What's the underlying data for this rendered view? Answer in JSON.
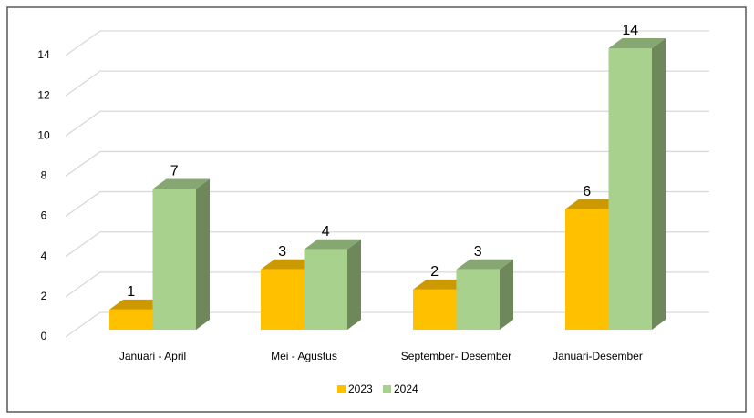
{
  "chart_data": {
    "type": "bar",
    "categories": [
      "Januari - April",
      "Mei - Agustus",
      "September- Desember",
      "Januari-Desember"
    ],
    "series": [
      {
        "name": "2023",
        "color": "#FFC000",
        "values": [
          1,
          3,
          2,
          6
        ]
      },
      {
        "name": "2024",
        "color": "#A9D18E",
        "values": [
          7,
          4,
          3,
          14
        ]
      }
    ],
    "ylim": [
      0,
      14
    ],
    "yticks": [
      0,
      2,
      4,
      6,
      8,
      10,
      12,
      14
    ],
    "grid": true,
    "legend": "bottom"
  }
}
